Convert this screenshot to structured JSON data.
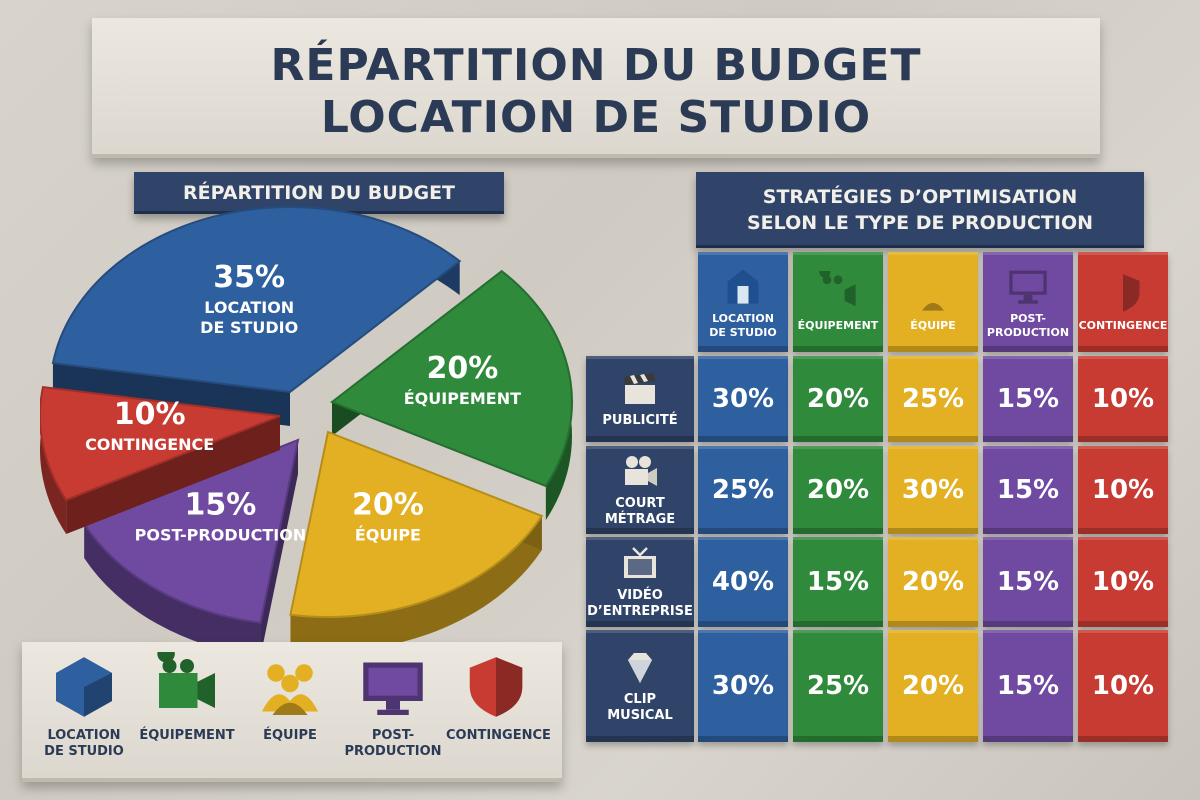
{
  "header": {
    "title_line1": "RÉPARTITION DU BUDGET",
    "title_line2": "LOCATION DE STUDIO"
  },
  "pie_panel": {
    "title": "RÉPARTITION DU BUDGET"
  },
  "strategy_panel": {
    "title_line1": "STRATÉGIES D’OPTIMISATION",
    "title_line2": "SELON LE TYPE DE PRODUCTION"
  },
  "colors": {
    "blue": "#2e5f9e",
    "green": "#2f8a3c",
    "yellow": "#e2b022",
    "purple": "#6f4aa0",
    "red": "#c73b33",
    "navy": "#2f4468"
  },
  "legend": [
    {
      "label_line1": "LOCATION",
      "label_line2": "DE STUDIO",
      "icon": "cube-icon"
    },
    {
      "label_line1": "ÉQUIPEMENT",
      "label_line2": "",
      "icon": "camera-icon"
    },
    {
      "label_line1": "ÉQUIPE",
      "label_line2": "",
      "icon": "team-icon"
    },
    {
      "label_line1": "POST-",
      "label_line2": "PRODUCTION",
      "icon": "monitor-icon"
    },
    {
      "label_line1": "CONTINGENCE",
      "label_line2": "",
      "icon": "shield-icon"
    }
  ],
  "chart_data": [
    {
      "type": "pie",
      "title": "RÉPARTITION DU BUDGET",
      "slices": [
        {
          "label_line1": "LOCATION",
          "label_line2": "DE STUDIO",
          "value": 35,
          "value_label": "35%"
        },
        {
          "label_line1": "ÉQUIPEMENT",
          "label_line2": "",
          "value": 20,
          "value_label": "20%"
        },
        {
          "label_line1": "ÉQUIPE",
          "label_line2": "",
          "value": 20,
          "value_label": "20%"
        },
        {
          "label_line1": "POST-PRODUCTION",
          "label_line2": "",
          "value": 15,
          "value_label": "15%"
        },
        {
          "label_line1": "CONTINGENCE",
          "label_line2": "",
          "value": 10,
          "value_label": "10%"
        }
      ]
    },
    {
      "type": "table",
      "title": "STRATÉGIES D’OPTIMISATION SELON LE TYPE DE PRODUCTION",
      "columns": [
        {
          "line1": "LOCATION",
          "line2": "DE STUDIO",
          "icon": "building-icon"
        },
        {
          "line1": "ÉQUIPEMENT",
          "line2": "",
          "icon": "camera-icon"
        },
        {
          "line1": "ÉQUIPE",
          "line2": "",
          "icon": "team-icon"
        },
        {
          "line1": "POST-",
          "line2": "PRODUCTION",
          "icon": "monitor-icon"
        },
        {
          "line1": "CONTINGENCE",
          "line2": "",
          "icon": "shield-icon"
        }
      ],
      "rows": [
        {
          "line1": "PUBLICITÉ",
          "line2": "",
          "icon": "clapperboard-icon",
          "values": [
            "30%",
            "20%",
            "25%",
            "15%",
            "10%"
          ]
        },
        {
          "line1": "COURT",
          "line2": "MÉTRAGE",
          "icon": "film-camera-icon",
          "values": [
            "25%",
            "20%",
            "30%",
            "15%",
            "10%"
          ]
        },
        {
          "line1": "VIDÉO",
          "line2": "D’ENTREPRISE",
          "icon": "tv-icon",
          "values": [
            "40%",
            "15%",
            "20%",
            "15%",
            "10%"
          ]
        },
        {
          "line1": "CLIP",
          "line2": "MUSICAL",
          "icon": "diamond-icon",
          "values": [
            "30%",
            "25%",
            "20%",
            "15%",
            "10%"
          ]
        }
      ]
    }
  ]
}
